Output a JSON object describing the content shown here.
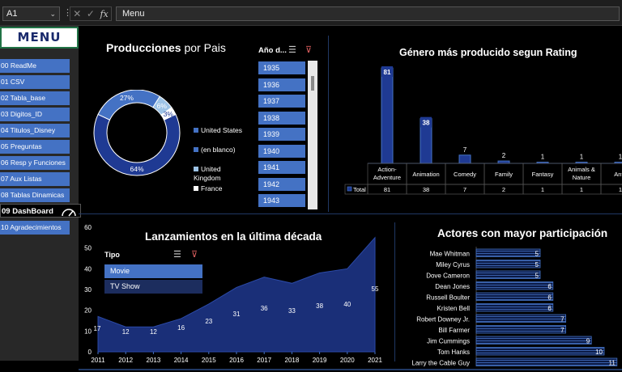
{
  "formula_bar": {
    "name_box": "A1",
    "formula": "Menu",
    "fx": "fx"
  },
  "menu": {
    "title": "MENU",
    "items": [
      "00 ReadMe",
      "01  CSV",
      "02 Tabla_base",
      "03 Digitos_ID",
      "04 Titulos_Disney",
      "05 Preguntas",
      "06 Resp y Funciones",
      "07 Aux Listas",
      "08 Tablas Dinamicas",
      "09 DashBoard",
      "10 Agradecimientos"
    ],
    "active_index": 9
  },
  "producciones": {
    "title_bold": "Producciones",
    "title_rest": " por Pais",
    "slicer_title": "Año d...",
    "years": [
      "1935",
      "1936",
      "1937",
      "1938",
      "1939",
      "1940",
      "1941",
      "1942",
      "1943"
    ],
    "legend": [
      "United States",
      "(en blanco)",
      "United Kingdom",
      "France"
    ],
    "labels": [
      "64%",
      "27%",
      "6%",
      "3%"
    ]
  },
  "genero": {
    "title": "Género más producido segun Rating",
    "table_row_label": "Total"
  },
  "lanzamientos": {
    "title": "Lanzamientos en la última década",
    "slicer_title": "Tipo",
    "options": [
      "Movie",
      "TV Show"
    ]
  },
  "actores": {
    "title": "Actores con mayor participación"
  },
  "colors": {
    "accent": "#4472c4",
    "navy": "#1f3a93",
    "dark_navy": "#152c6b",
    "panel_line": "#203864"
  },
  "chart_data": [
    {
      "type": "pie",
      "title": "Producciones por Pais",
      "categories": [
        "United States",
        "(en blanco)",
        "United Kingdom",
        "France"
      ],
      "values": [
        64,
        27,
        6,
        3
      ],
      "colors": [
        "#1f3a93",
        "#4472c4",
        "#9dc3e6",
        "#ffffff"
      ]
    },
    {
      "type": "bar",
      "title": "Género más producido segun Rating",
      "categories": [
        "Action-Adventure",
        "Animation",
        "Comedy",
        "Family",
        "Fantasy",
        "Animals & Nature",
        "Anth"
      ],
      "values": [
        81,
        38,
        7,
        2,
        1,
        1,
        1
      ],
      "series_name": "Total"
    },
    {
      "type": "area",
      "title": "Lanzamientos en la última década",
      "x": [
        "2011",
        "2012",
        "2013",
        "2014",
        "2015",
        "2016",
        "2017",
        "2018",
        "2019",
        "2020",
        "2021"
      ],
      "values": [
        17,
        12,
        12,
        16,
        23,
        31,
        36,
        33,
        38,
        40,
        55
      ],
      "ylim": [
        0,
        60
      ],
      "yticks": [
        "0",
        "10",
        "20",
        "30",
        "40",
        "50",
        "60"
      ]
    },
    {
      "type": "bar",
      "orientation": "horizontal",
      "title": "Actores con mayor participación",
      "categories": [
        "Mae Whitman",
        "Miley Cyrus",
        "Dove Cameron",
        "Dean Jones",
        "Russell Boulter",
        "Kristen Bell",
        "Robert Downey Jr.",
        "Bill Farmer",
        "Jim Cummings",
        "Tom Hanks",
        "Larry the Cable Guy"
      ],
      "values": [
        5,
        5,
        5,
        6,
        6,
        6,
        7,
        7,
        9,
        10,
        11
      ]
    }
  ]
}
